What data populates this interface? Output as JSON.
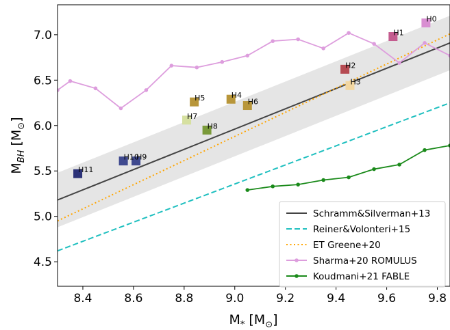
{
  "chart_data": {
    "type": "scatter",
    "xlabel": "M",
    "xlabel_sub": "*",
    "xlabel_unit_open": " [M",
    "xlabel_unit_sub": "⊙",
    "xlabel_unit_close": "]",
    "ylabel": "M",
    "ylabel_sub": "BH",
    "ylabel_unit_open": " [M",
    "ylabel_unit_sub": "⊙",
    "ylabel_unit_close": "]",
    "xlim": [
      8.3,
      9.85
    ],
    "ylim": [
      4.23,
      7.33
    ],
    "xticks": [
      "8.4",
      "8.6",
      "8.8",
      "9.0",
      "9.2",
      "9.4",
      "9.6",
      "9.8"
    ],
    "xtick_values": [
      8.4,
      8.6,
      8.8,
      9.0,
      9.2,
      9.4,
      9.6,
      9.8
    ],
    "yticks": [
      "4.5",
      "5.0",
      "5.5",
      "6.0",
      "6.5",
      "7.0"
    ],
    "ytick_values": [
      4.5,
      5.0,
      5.5,
      6.0,
      6.5,
      7.0
    ],
    "grid": false,
    "legend_position": "lower-right",
    "band": {
      "color": "#e5e5e5",
      "description_points": [
        [
          8.3,
          5.48,
          4.88
        ],
        [
          9.85,
          7.21,
          6.61
        ]
      ]
    },
    "relations": [
      {
        "name": "Schramm&Silverman+13",
        "color": "#444444",
        "style": "solid",
        "x": [
          8.3,
          9.85
        ],
        "y": [
          5.18,
          6.91
        ]
      },
      {
        "name": "Reiner&Volonteri+15",
        "color": "#1ebfbf",
        "style": "dashed",
        "x": [
          8.3,
          9.85
        ],
        "y": [
          4.62,
          6.25
        ]
      },
      {
        "name": "ET Greene+20",
        "color": "#ffa500",
        "style": "dotted",
        "x": [
          8.3,
          9.85
        ],
        "y": [
          4.95,
          7.01
        ]
      }
    ],
    "series": [
      {
        "name": "Sharma+20 ROMULUS",
        "color": "#dd9ddd",
        "x": [
          8.3,
          8.35,
          8.45,
          8.55,
          8.65,
          8.75,
          8.85,
          8.95,
          9.05,
          9.15,
          9.25,
          9.35,
          9.45,
          9.55,
          9.65,
          9.75,
          9.85
        ],
        "y": [
          6.39,
          6.49,
          6.41,
          6.19,
          6.39,
          6.66,
          6.64,
          6.7,
          6.77,
          6.93,
          6.95,
          6.85,
          7.02,
          6.9,
          6.69,
          6.91,
          6.77
        ]
      },
      {
        "name": "Koudmani+21 FABLE",
        "color": "#1a8a1a",
        "x": [
          9.05,
          9.15,
          9.25,
          9.35,
          9.45,
          9.55,
          9.65,
          9.75,
          9.85
        ],
        "y": [
          5.29,
          5.33,
          5.35,
          5.4,
          5.43,
          5.52,
          5.57,
          5.73,
          5.78
        ]
      }
    ],
    "halos": [
      {
        "label": "H0",
        "x": 9.755,
        "y": 7.13,
        "color": "#d98fd2"
      },
      {
        "label": "H1",
        "x": 9.625,
        "y": 6.98,
        "color": "#c45c8f"
      },
      {
        "label": "H2",
        "x": 9.435,
        "y": 6.62,
        "color": "#b54a52"
      },
      {
        "label": "H3",
        "x": 9.455,
        "y": 6.44,
        "color": "#f2d6a0"
      },
      {
        "label": "H4",
        "x": 8.985,
        "y": 6.29,
        "color": "#b8963a"
      },
      {
        "label": "H5",
        "x": 8.84,
        "y": 6.26,
        "color": "#b8963a"
      },
      {
        "label": "H6",
        "x": 9.05,
        "y": 6.22,
        "color": "#b8963a"
      },
      {
        "label": "H7",
        "x": 8.81,
        "y": 6.06,
        "color": "#d6e0a0"
      },
      {
        "label": "H8",
        "x": 8.89,
        "y": 5.95,
        "color": "#7a9a3a"
      },
      {
        "label": "H9",
        "x": 8.61,
        "y": 5.61,
        "color": "#404a8f"
      },
      {
        "label": "H10",
        "x": 8.56,
        "y": 5.61,
        "color": "#404a8f"
      },
      {
        "label": "H11",
        "x": 8.38,
        "y": 5.47,
        "color": "#2c3278"
      }
    ],
    "legend": [
      {
        "label": "Schramm&Silverman+13",
        "kind": "line",
        "color": "#444444",
        "style": "solid"
      },
      {
        "label": "Reiner&Volonteri+15",
        "kind": "line",
        "color": "#1ebfbf",
        "style": "dashed"
      },
      {
        "label": "ET Greene+20",
        "kind": "line",
        "color": "#ffa500",
        "style": "dotted"
      },
      {
        "label": "Sharma+20 ROMULUS",
        "kind": "marker-line",
        "color": "#dd9ddd",
        "style": "solid"
      },
      {
        "label": "Koudmani+21 FABLE",
        "kind": "marker-line",
        "color": "#1a8a1a",
        "style": "solid"
      }
    ]
  }
}
